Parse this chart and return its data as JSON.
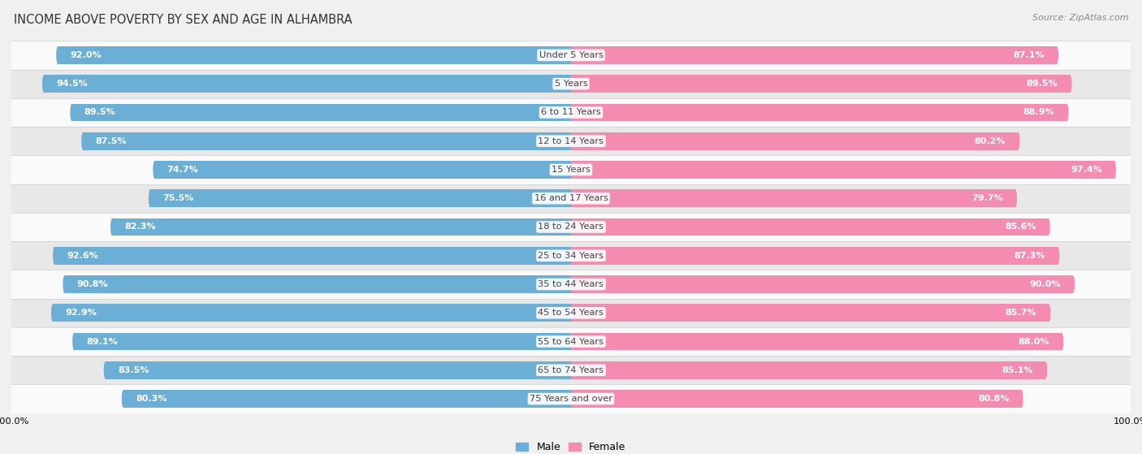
{
  "title": "INCOME ABOVE POVERTY BY SEX AND AGE IN ALHAMBRA",
  "source": "Source: ZipAtlas.com",
  "categories": [
    "Under 5 Years",
    "5 Years",
    "6 to 11 Years",
    "12 to 14 Years",
    "15 Years",
    "16 and 17 Years",
    "18 to 24 Years",
    "25 to 34 Years",
    "35 to 44 Years",
    "45 to 54 Years",
    "55 to 64 Years",
    "65 to 74 Years",
    "75 Years and over"
  ],
  "male": [
    92.0,
    94.5,
    89.5,
    87.5,
    74.7,
    75.5,
    82.3,
    92.6,
    90.8,
    92.9,
    89.1,
    83.5,
    80.3
  ],
  "female": [
    87.1,
    89.5,
    88.9,
    80.2,
    97.4,
    79.7,
    85.6,
    87.3,
    90.0,
    85.7,
    88.0,
    85.1,
    80.8
  ],
  "male_color": "#6baed6",
  "female_color": "#f48cb1",
  "background_color": "#f0f0f0",
  "row_bg_light": "#fafafa",
  "row_bg_dark": "#e8e8e8",
  "title_fontsize": 10.5,
  "label_fontsize": 8.2,
  "bar_label_fontsize": 8.0,
  "legend_fontsize": 9,
  "source_fontsize": 8,
  "xlim": 100.0
}
